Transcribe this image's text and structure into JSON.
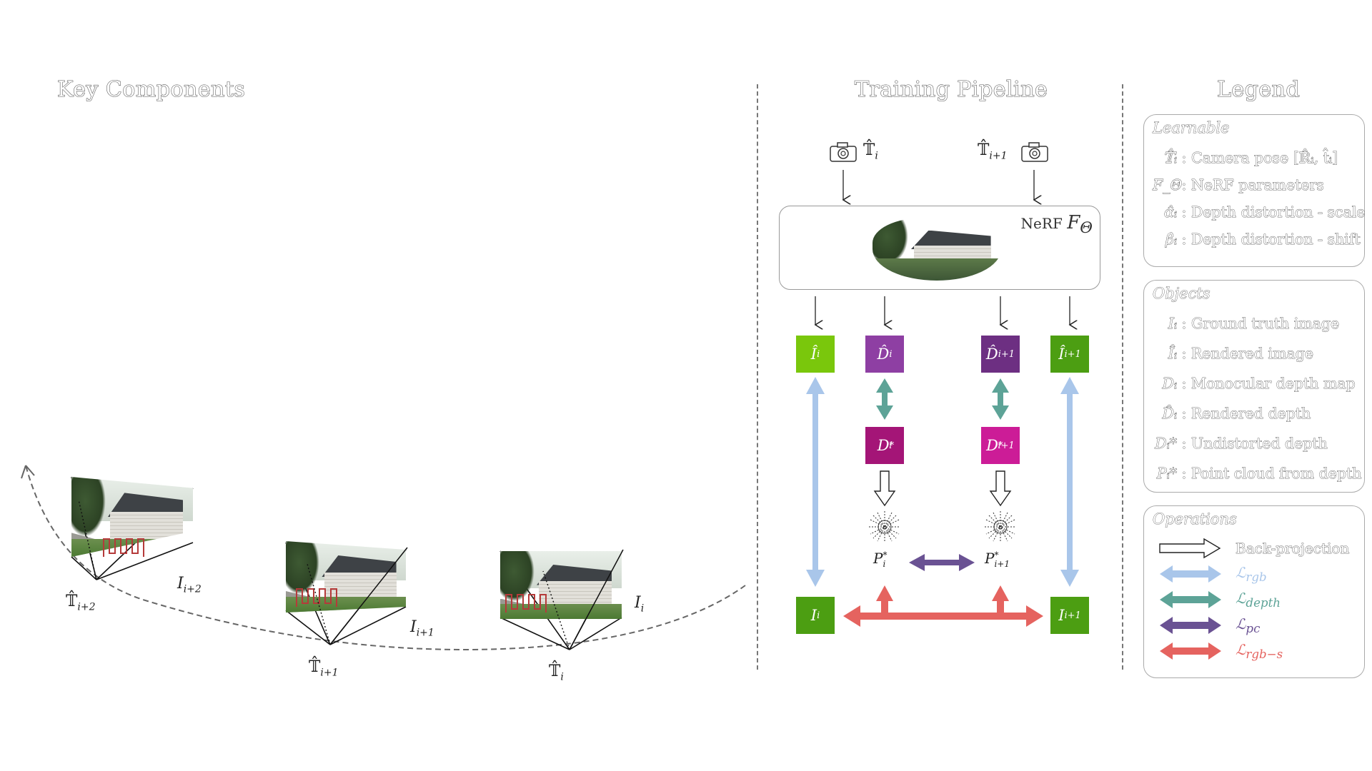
{
  "titles": {
    "key_components": "Key Components",
    "training_pipeline": "Training Pipeline",
    "legend": "Legend"
  },
  "key_components": {
    "pose_i": "𝕋̂",
    "pose_i_sub": "i",
    "pose_i1": "𝕋̂",
    "pose_i1_sub": "i+1",
    "pose_i2": "𝕋̂",
    "pose_i2_sub": "i+2",
    "image_i": "I",
    "image_i_sub": "i",
    "image_i1": "I",
    "image_i1_sub": "i+1",
    "image_i2": "I",
    "image_i2_sub": "i+2"
  },
  "pipeline": {
    "cam_left_label": "𝕋̂",
    "cam_left_sub": "i",
    "cam_right_label": "𝕋̂",
    "cam_right_sub": "i+1",
    "nerf_label": "NeRF",
    "nerf_symbol": "F",
    "nerf_symbol_sub": "Θ",
    "boxes": {
      "Ihat_i": {
        "main": "Î",
        "sub": "i",
        "color": "#7ac70c"
      },
      "Dhat_i": {
        "main": "D̂",
        "sub": "i",
        "color": "#8e3fa3"
      },
      "Dhat_i1": {
        "main": "D̂",
        "sub": "i+1",
        "color": "#6d2f82"
      },
      "Ihat_i1": {
        "main": "Î",
        "sub": "i+1",
        "color": "#4c9e12"
      },
      "Dstar_i": {
        "main": "D",
        "sub": "i",
        "sup": "*",
        "color": "#a41577"
      },
      "Dstar_i1": {
        "main": "D",
        "sub": "i+1",
        "sup": "*",
        "color": "#cc1c97"
      },
      "I_i": {
        "main": "I",
        "sub": "i",
        "color": "#4c9e12"
      },
      "I_i1": {
        "main": "I",
        "sub": "i+1",
        "color": "#4c9e12"
      }
    },
    "pc_i": {
      "main": "P",
      "sub": "i",
      "sup": "*"
    },
    "pc_i1": {
      "main": "P",
      "sub": "i+1",
      "sup": "*"
    }
  },
  "colors": {
    "rgb": "#a9c6ea",
    "depth": "#5da397",
    "pc": "#6a5293",
    "rgb_s": "#e5635f"
  },
  "legend": {
    "learnable": {
      "title": "Learnable",
      "rows": [
        {
          "sym": "𝕋̂ᵢ",
          "text": ": Camera pose [ℝ̂ᵢ, t̂ᵢ]"
        },
        {
          "sym": "F_Θ",
          "text": ": NeRF parameters"
        },
        {
          "sym": "α̂ᵢ",
          "text": ": Depth distortion - scale"
        },
        {
          "sym": "β̂ᵢ",
          "text": ": Depth distortion - shift"
        }
      ]
    },
    "objects": {
      "title": "Objects",
      "rows": [
        {
          "sym": "Iᵢ",
          "text": ": Ground truth image"
        },
        {
          "sym": "Îᵢ",
          "text": ": Rendered image"
        },
        {
          "sym": "Dᵢ",
          "text": ": Monocular depth map"
        },
        {
          "sym": "D̂ᵢ",
          "text": ": Rendered depth"
        },
        {
          "sym": "Dᵢ*",
          "text": ": Undistorted depth"
        },
        {
          "sym": "Pᵢ*",
          "text": ": Point cloud from depth"
        }
      ]
    },
    "operations": {
      "title": "Operations",
      "backprojection": "Back-projection",
      "l_rgb": "ℒ",
      "l_rgb_sub": "rgb",
      "l_depth": "ℒ",
      "l_depth_sub": "depth",
      "l_pc": "ℒ",
      "l_pc_sub": "pc",
      "l_rgbs": "ℒ",
      "l_rgbs_sub": "rgb−s"
    }
  }
}
